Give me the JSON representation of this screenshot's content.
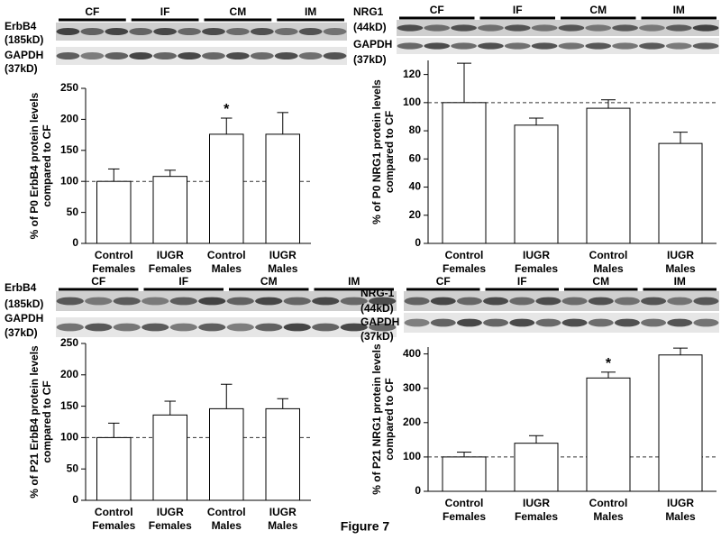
{
  "figure_label": "Figure 7",
  "chart_data": [
    {
      "type": "bar",
      "ylabel": [
        "% of P0 ErbB4 protein levels",
        "compared to CF"
      ],
      "categories": [
        [
          "Control",
          "Females"
        ],
        [
          "IUGR",
          "Females"
        ],
        [
          "Control",
          "Males"
        ],
        [
          "IUGR",
          "Males"
        ]
      ],
      "values": [
        100,
        108,
        176,
        176
      ],
      "errors": [
        20,
        10,
        26,
        35
      ],
      "significance": [
        null,
        null,
        "*",
        null
      ],
      "reference_line": 100,
      "color": "#ffffff",
      "ylim": [
        0,
        250
      ],
      "yticks": [
        0,
        50,
        100,
        150,
        200,
        250
      ],
      "blot_groups": [
        "CF",
        "IF",
        "CM",
        "IM"
      ],
      "blot_labels": [
        "ErbB4",
        "(185kD)",
        "GAPDH",
        "(37kD)"
      ]
    },
    {
      "type": "bar",
      "ylabel": [
        "% of P0 NRG1 protein levels",
        "compared to CF"
      ],
      "categories": [
        [
          "Control",
          "Females"
        ],
        [
          "IUGR",
          "Females"
        ],
        [
          "Control",
          "Males"
        ],
        [
          "IUGR",
          "Males"
        ]
      ],
      "values": [
        100,
        84,
        96,
        71
      ],
      "errors": [
        28,
        5,
        6,
        8
      ],
      "significance": [
        null,
        null,
        null,
        null
      ],
      "reference_line": 100,
      "color": "#ffffff",
      "ylim": [
        0,
        130
      ],
      "yticks": [
        0,
        20,
        40,
        60,
        80,
        100,
        120
      ],
      "blot_groups": [
        "CF",
        "IF",
        "CM",
        "IM"
      ],
      "blot_labels": [
        "NRG1",
        "(44kD)",
        "GAPDH",
        "(37kD)"
      ]
    },
    {
      "type": "bar",
      "ylabel": [
        "% of P21 ErbB4 protein levels",
        "compared to CF"
      ],
      "categories": [
        [
          "Control",
          "Females"
        ],
        [
          "IUGR",
          "Females"
        ],
        [
          "Control",
          "Males"
        ],
        [
          "IUGR",
          "Males"
        ]
      ],
      "values": [
        100,
        136,
        146,
        146
      ],
      "errors": [
        23,
        22,
        39,
        16
      ],
      "significance": [
        null,
        null,
        null,
        null
      ],
      "reference_line": 100,
      "color": "#ffffff",
      "ylim": [
        0,
        250
      ],
      "yticks": [
        0,
        50,
        100,
        150,
        200,
        250
      ],
      "blot_groups": [
        "CF",
        "IF",
        "CM",
        "IM"
      ],
      "blot_labels": [
        "ErbB4",
        "(185kD)",
        "GAPDH",
        "(37kD)"
      ]
    },
    {
      "type": "bar",
      "ylabel": [
        "% of P21 NRG1 protein levels",
        "compared to CF"
      ],
      "categories": [
        [
          "Control",
          "Females"
        ],
        [
          "IUGR",
          "Females"
        ],
        [
          "Control",
          "Males"
        ],
        [
          "IUGR",
          "Males"
        ]
      ],
      "values": [
        100,
        140,
        330,
        397
      ],
      "errors": [
        14,
        22,
        17,
        20
      ],
      "significance": [
        null,
        null,
        "*",
        null
      ],
      "reference_line": 100,
      "color": "#ffffff",
      "ylim": [
        0,
        420
      ],
      "yticks": [
        0,
        100,
        200,
        300,
        400
      ],
      "blot_groups": [
        "CF",
        "IF",
        "CM",
        "IM"
      ],
      "blot_labels": [
        "NRG-1",
        "(44kD)",
        "GAPDH",
        "(37kD)"
      ]
    }
  ]
}
